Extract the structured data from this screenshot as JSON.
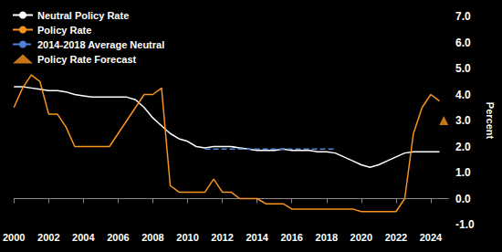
{
  "chart_data": {
    "type": "line",
    "y_label": "Percent",
    "x": [
      2000,
      2000.5,
      2001,
      2001.5,
      2002,
      2002.5,
      2003,
      2003.5,
      2004,
      2004.5,
      2005,
      2005.5,
      2006,
      2006.5,
      2007,
      2007.5,
      2008,
      2008.5,
      2009,
      2009.5,
      2010,
      2010.5,
      2011,
      2011.5,
      2012,
      2012.5,
      2013,
      2013.5,
      2014,
      2014.5,
      2015,
      2015.5,
      2016,
      2016.5,
      2017,
      2017.5,
      2018,
      2018.5,
      2019,
      2019.5,
      2020,
      2020.5,
      2021,
      2021.5,
      2022,
      2022.5,
      2023,
      2023.5,
      2024,
      2024.5,
      2024.75
    ],
    "series": [
      {
        "name": "Neutral Policy Rate",
        "color": "#ffffff",
        "type": "line",
        "line_style": "solid",
        "values": [
          4.3,
          4.3,
          4.25,
          4.2,
          4.15,
          4.15,
          4.1,
          4.0,
          3.95,
          3.9,
          3.9,
          3.9,
          3.9,
          3.9,
          3.8,
          3.5,
          3.1,
          2.8,
          2.5,
          2.3,
          2.2,
          2.0,
          1.95,
          2.0,
          2.0,
          2.0,
          1.95,
          1.9,
          1.85,
          1.85,
          1.85,
          1.9,
          1.85,
          1.85,
          1.85,
          1.8,
          1.8,
          1.75,
          1.6,
          1.45,
          1.3,
          1.2,
          1.3,
          1.45,
          1.6,
          1.75,
          1.8,
          1.8,
          1.8,
          1.8,
          null
        ]
      },
      {
        "name": "Policy Rate",
        "color": "#f7931e",
        "type": "line",
        "line_style": "solid",
        "values": [
          3.5,
          4.25,
          4.75,
          4.5,
          3.25,
          3.25,
          2.75,
          2.0,
          2.0,
          2.0,
          2.0,
          2.0,
          2.5,
          3.0,
          3.5,
          4.0,
          4.0,
          4.25,
          0.5,
          0.25,
          0.25,
          0.25,
          0.25,
          0.75,
          0.25,
          0.25,
          0.0,
          0.0,
          0.0,
          -0.2,
          -0.2,
          -0.2,
          -0.4,
          -0.4,
          -0.4,
          -0.4,
          -0.4,
          -0.4,
          -0.4,
          -0.4,
          -0.5,
          -0.5,
          -0.5,
          -0.5,
          -0.5,
          0.0,
          2.5,
          3.5,
          4.0,
          3.75,
          null
        ]
      },
      {
        "name": "2014-2018 Average Neutral",
        "color": "#4f81d6",
        "type": "line",
        "line_style": "dashed",
        "values": [
          null,
          null,
          null,
          null,
          null,
          null,
          null,
          null,
          null,
          null,
          null,
          null,
          null,
          null,
          null,
          null,
          null,
          null,
          null,
          null,
          null,
          null,
          1.9,
          1.9,
          1.9,
          1.9,
          1.9,
          1.9,
          1.9,
          1.9,
          1.9,
          1.9,
          1.9,
          1.9,
          1.9,
          1.9,
          1.9,
          1.9,
          null,
          null,
          null,
          null,
          null,
          null,
          null,
          null,
          null,
          null,
          null,
          null,
          null
        ]
      },
      {
        "name": "Policy Rate Forecast",
        "color": "#f7931e",
        "type": "scatter",
        "marker": "triangle",
        "values": [
          null,
          null,
          null,
          null,
          null,
          null,
          null,
          null,
          null,
          null,
          null,
          null,
          null,
          null,
          null,
          null,
          null,
          null,
          null,
          null,
          null,
          null,
          null,
          null,
          null,
          null,
          null,
          null,
          null,
          null,
          null,
          null,
          null,
          null,
          null,
          null,
          null,
          null,
          null,
          null,
          null,
          null,
          null,
          null,
          null,
          null,
          null,
          null,
          null,
          null,
          3.0
        ]
      }
    ],
    "xlim": [
      2000,
      2025
    ],
    "xticks": [
      2000,
      2002,
      2004,
      2006,
      2008,
      2010,
      2012,
      2014,
      2016,
      2018,
      2020,
      2022,
      2024
    ],
    "ylim": [
      -1,
      7
    ],
    "yticks": [
      {
        "value": -1,
        "label": "-1.0"
      },
      {
        "value": 0,
        "label": "0.0"
      },
      {
        "value": 1,
        "label": "1.0"
      },
      {
        "value": 2,
        "label": "2.0"
      },
      {
        "value": 3,
        "label": "3.0"
      },
      {
        "value": 4,
        "label": "4.0"
      },
      {
        "value": 5,
        "label": "5.0"
      },
      {
        "value": 6,
        "label": "6.0"
      },
      {
        "value": 7,
        "label": "7.0"
      }
    ],
    "grid": false,
    "legend": "top-left"
  }
}
